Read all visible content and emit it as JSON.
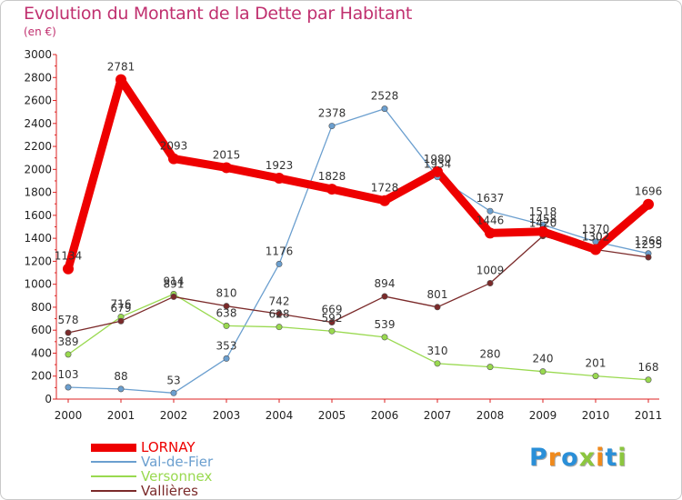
{
  "title": "Evolution du Montant de la Dette par Habitant",
  "unit_label": "(en €)",
  "logo": "Proxiti",
  "logo_colors": [
    "#2a8fd8",
    "#f08a1c",
    "#2a8fd8",
    "#8cc63f",
    "#f08a1c",
    "#2a8fd8",
    "#8cc63f"
  ],
  "chart_data": {
    "type": "line",
    "x": [
      "2000",
      "2001",
      "2002",
      "2003",
      "2004",
      "2005",
      "2006",
      "2007",
      "2008",
      "2009",
      "2010",
      "2011"
    ],
    "ylim": [
      0,
      3000
    ],
    "yticks": [
      0,
      200,
      400,
      600,
      800,
      1000,
      1200,
      1400,
      1600,
      1800,
      2000,
      2200,
      2400,
      2600,
      2800,
      3000
    ],
    "grid": false,
    "legend_position": "bottom-left",
    "series": [
      {
        "name": "LORNAY",
        "color": "#ee0000",
        "values": [
          1134,
          2781,
          2093,
          2015,
          1923,
          1828,
          1728,
          1980,
          1446,
          1458,
          1302,
          1696
        ]
      },
      {
        "name": "Val-de-Fier",
        "color": "#6b9fcf",
        "values": [
          103,
          88,
          53,
          353,
          1176,
          2378,
          2528,
          1934,
          1637,
          1518,
          1370,
          1268
        ]
      },
      {
        "name": "Versonnex",
        "color": "#99d94f",
        "values": [
          389,
          716,
          914,
          638,
          628,
          592,
          539,
          310,
          280,
          240,
          201,
          168
        ]
      },
      {
        "name": "Vallières",
        "color": "#7b2a2a",
        "values": [
          578,
          679,
          891,
          810,
          742,
          669,
          894,
          801,
          1009,
          1420,
          1302,
          1235
        ]
      }
    ]
  }
}
